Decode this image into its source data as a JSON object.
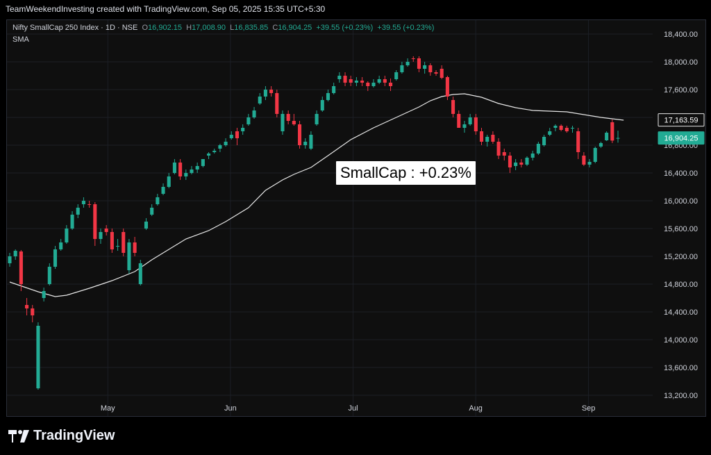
{
  "watermark": "TeamWeekendInvesting created with TradingView.com, Sep 05, 2025 15:35 UTC+5:30",
  "legend": {
    "symbol": "Nifty SmallCap 250 Index · 1D · NSE",
    "o_label": "O",
    "o": "16,902.15",
    "h_label": "H",
    "h": "17,008.90",
    "l_label": "L",
    "l": "16,835.85",
    "c_label": "C",
    "c": "16,904.25",
    "change1": "+39.55 (+0.23%)",
    "change2": "+39.55 (+0.23%)",
    "sma": "SMA"
  },
  "annotation": "SmallCap : +0.23%",
  "logo_text": "TradingView",
  "colors": {
    "up": "#22ab94",
    "down": "#f23645",
    "sma": "#e8e8e8",
    "price_tag": "#22ab94",
    "background": "#0f0f0f",
    "grid": "#1c1f26"
  },
  "chart_data": {
    "type": "candlestick",
    "ylim": [
      12900,
      18600
    ],
    "y_ticks": [
      "13,200.00",
      "13,600.00",
      "14,000.00",
      "14,400.00",
      "14,800.00",
      "15,200.00",
      "15,600.00",
      "16,000.00",
      "16,400.00",
      "16,800.00",
      "17,200.00",
      "17,600.00",
      "18,000.00",
      "18,400.00"
    ],
    "x_ticks": [
      "May",
      "Jun",
      "Jul",
      "Aug",
      "Sep"
    ],
    "price_tags": {
      "sma_value": "17,163.59",
      "last_close": "16,904.25"
    },
    "candles": [
      [
        15100,
        15250,
        15050,
        15200
      ],
      [
        15200,
        15300,
        15150,
        15280
      ],
      [
        15270,
        15290,
        14700,
        14800
      ],
      [
        14500,
        14600,
        14350,
        14450
      ],
      [
        14450,
        14500,
        14250,
        14350
      ],
      [
        13300,
        14250,
        13280,
        14200
      ],
      [
        14600,
        14750,
        14550,
        14700
      ],
      [
        14800,
        15100,
        14780,
        15050
      ],
      [
        15050,
        15350,
        15020,
        15300
      ],
      [
        15300,
        15450,
        15280,
        15400
      ],
      [
        15400,
        15650,
        15380,
        15600
      ],
      [
        15600,
        15850,
        15580,
        15800
      ],
      [
        15800,
        15950,
        15750,
        15900
      ],
      [
        15950,
        16050,
        15900,
        16000
      ],
      [
        15950,
        16000,
        15900,
        15940
      ],
      [
        15950,
        15980,
        15350,
        15450
      ],
      [
        15450,
        15600,
        15380,
        15550
      ],
      [
        15600,
        15650,
        15500,
        15550
      ],
      [
        15550,
        15600,
        15250,
        15300
      ],
      [
        15350,
        15450,
        15280,
        15350
      ],
      [
        15550,
        15600,
        15200,
        15250
      ],
      [
        15000,
        15450,
        14950,
        15400
      ],
      [
        15400,
        15480,
        15200,
        15250
      ],
      [
        14800,
        15150,
        14780,
        15100
      ],
      [
        15600,
        15750,
        15580,
        15700
      ],
      [
        15800,
        15950,
        15780,
        15900
      ],
      [
        15950,
        16100,
        15930,
        16050
      ],
      [
        16100,
        16250,
        16080,
        16200
      ],
      [
        16200,
        16400,
        16180,
        16350
      ],
      [
        16400,
        16600,
        16380,
        16550
      ],
      [
        16550,
        16600,
        16300,
        16350
      ],
      [
        16350,
        16450,
        16300,
        16400
      ],
      [
        16400,
        16500,
        16380,
        16450
      ],
      [
        16450,
        16550,
        16400,
        16500
      ],
      [
        16500,
        16600,
        16480,
        16600
      ],
      [
        16650,
        16700,
        16600,
        16680
      ],
      [
        16700,
        16750,
        16680,
        16720
      ],
      [
        16750,
        16820,
        16700,
        16800
      ],
      [
        16800,
        16900,
        16780,
        16850
      ],
      [
        16900,
        17000,
        16880,
        16950
      ],
      [
        17000,
        17050,
        16800,
        16900
      ],
      [
        17000,
        17100,
        16950,
        17050
      ],
      [
        17100,
        17250,
        17080,
        17200
      ],
      [
        17200,
        17350,
        17180,
        17300
      ],
      [
        17400,
        17550,
        17380,
        17500
      ],
      [
        17500,
        17650,
        17450,
        17600
      ],
      [
        17600,
        17650,
        17500,
        17550
      ],
      [
        17550,
        17600,
        17200,
        17250
      ],
      [
        17000,
        17300,
        16950,
        17250
      ],
      [
        17250,
        17300,
        17100,
        17150
      ],
      [
        17150,
        17250,
        17080,
        17100
      ],
      [
        17100,
        17150,
        16750,
        16800
      ],
      [
        16800,
        16900,
        16750,
        16850
      ],
      [
        16750,
        17000,
        16730,
        16950
      ],
      [
        17100,
        17300,
        17080,
        17250
      ],
      [
        17300,
        17500,
        17280,
        17450
      ],
      [
        17450,
        17600,
        17430,
        17550
      ],
      [
        17550,
        17700,
        17530,
        17650
      ],
      [
        17750,
        17850,
        17700,
        17800
      ],
      [
        17800,
        17850,
        17650,
        17700
      ],
      [
        17750,
        17800,
        17650,
        17700
      ],
      [
        17700,
        17780,
        17650,
        17730
      ],
      [
        17730,
        17780,
        17650,
        17700
      ],
      [
        17700,
        17720,
        17580,
        17650
      ],
      [
        17650,
        17750,
        17630,
        17700
      ],
      [
        17700,
        17800,
        17680,
        17750
      ],
      [
        17750,
        17800,
        17650,
        17700
      ],
      [
        17700,
        17760,
        17580,
        17650
      ],
      [
        17750,
        17880,
        17730,
        17850
      ],
      [
        17850,
        18000,
        17830,
        17950
      ],
      [
        17950,
        18050,
        17930,
        18000
      ],
      [
        18050,
        18080,
        18000,
        18040
      ],
      [
        18050,
        18080,
        17850,
        17900
      ],
      [
        17900,
        18000,
        17830,
        17950
      ],
      [
        17950,
        17980,
        17800,
        17850
      ],
      [
        17850,
        17880,
        17800,
        17830
      ],
      [
        17900,
        17950,
        17750,
        17770
      ],
      [
        17780,
        17800,
        17450,
        17500
      ],
      [
        17450,
        17500,
        17200,
        17250
      ],
      [
        17250,
        17300,
        17050,
        17050
      ],
      [
        17050,
        17150,
        16980,
        17100
      ],
      [
        17100,
        17250,
        17080,
        17200
      ],
      [
        17200,
        17250,
        16950,
        17000
      ],
      [
        17000,
        17050,
        16800,
        16850
      ],
      [
        16850,
        16950,
        16780,
        16920
      ],
      [
        16950,
        17000,
        16820,
        16850
      ],
      [
        16850,
        16900,
        16600,
        16650
      ],
      [
        16700,
        16750,
        16580,
        16650
      ],
      [
        16650,
        16700,
        16400,
        16480
      ],
      [
        16500,
        16600,
        16440,
        16550
      ],
      [
        16550,
        16600,
        16480,
        16520
      ],
      [
        16520,
        16640,
        16500,
        16620
      ],
      [
        16620,
        16720,
        16580,
        16680
      ],
      [
        16680,
        16850,
        16660,
        16820
      ],
      [
        16800,
        16950,
        16780,
        16920
      ],
      [
        16950,
        17050,
        16930,
        17000
      ],
      [
        17050,
        17100,
        17000,
        17080
      ],
      [
        17080,
        17100,
        17000,
        17020
      ],
      [
        17050,
        17080,
        16980,
        17000
      ],
      [
        17050,
        17080,
        16980,
        17050
      ],
      [
        17000,
        17050,
        16600,
        16700
      ],
      [
        16650,
        16700,
        16500,
        16520
      ],
      [
        16520,
        16600,
        16480,
        16560
      ],
      [
        16560,
        16780,
        16540,
        16760
      ],
      [
        16780,
        16850,
        16760,
        16830
      ],
      [
        16870,
        17000,
        16860,
        16980
      ],
      [
        17130,
        17170,
        16830,
        16866
      ],
      [
        16902,
        17009,
        16836,
        16904
      ]
    ],
    "sma": [
      [
        0,
        14830
      ],
      [
        5,
        14690
      ],
      [
        8,
        14620
      ],
      [
        10,
        14640
      ],
      [
        14,
        14740
      ],
      [
        18,
        14850
      ],
      [
        22,
        14980
      ],
      [
        25,
        15150
      ],
      [
        28,
        15300
      ],
      [
        31,
        15450
      ],
      [
        35,
        15570
      ],
      [
        38,
        15700
      ],
      [
        42,
        15900
      ],
      [
        45,
        16150
      ],
      [
        48,
        16300
      ],
      [
        50,
        16380
      ],
      [
        53,
        16480
      ],
      [
        56,
        16650
      ],
      [
        60,
        16880
      ],
      [
        64,
        17050
      ],
      [
        68,
        17200
      ],
      [
        72,
        17350
      ],
      [
        74,
        17440
      ],
      [
        76,
        17500
      ],
      [
        78,
        17530
      ],
      [
        80,
        17540
      ],
      [
        83,
        17490
      ],
      [
        86,
        17400
      ],
      [
        89,
        17340
      ],
      [
        92,
        17300
      ],
      [
        95,
        17290
      ],
      [
        98,
        17280
      ],
      [
        101,
        17240
      ],
      [
        104,
        17200
      ],
      [
        108,
        17160
      ]
    ]
  }
}
